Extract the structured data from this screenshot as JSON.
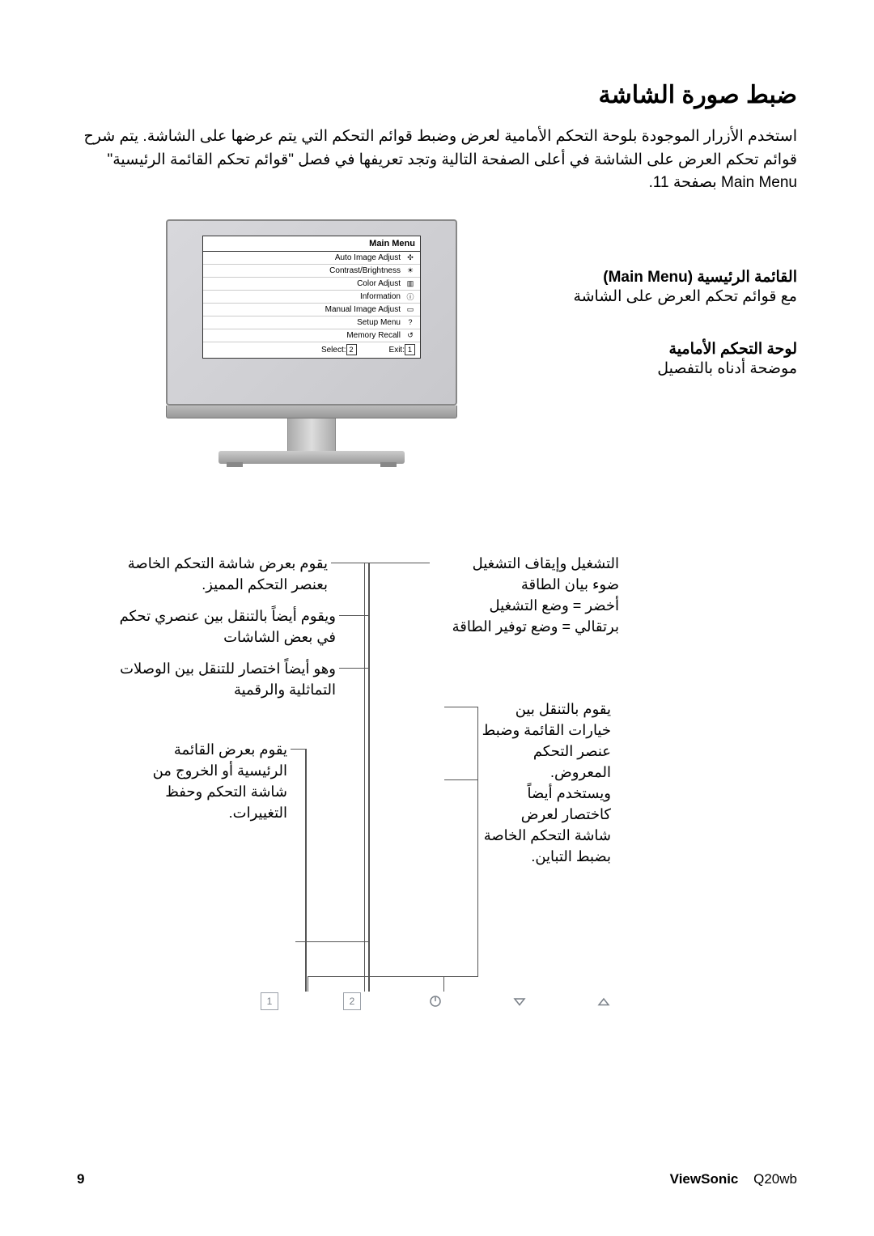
{
  "title": "ضبط صورة الشاشة",
  "intro": "استخدم الأزرار الموجودة بلوحة التحكم الأمامية لعرض وضبط قوائم التحكم التي يتم عرضها على الشاشة. يتم شرح قوائم تحكم العرض على الشاشة في أعلى الصفحة التالية وتجد تعريفها في فصل \"قوائم تحكم القائمة الرئيسية\" Main Menu بصفحة 11.",
  "osd": {
    "title": "Main Menu",
    "items": [
      "Auto Image Adjust",
      "Contrast/Brightness",
      "Color Adjust",
      "Information",
      "Manual Image Adjust",
      "Setup Menu",
      "Memory Recall"
    ],
    "exit_btn": "1",
    "exit_label": ":Exit",
    "select_btn": "2",
    "select_label": ":Select"
  },
  "side": {
    "main_menu_title": "القائمة الرئيسية (Main Menu)",
    "main_menu_sub": "مع قوائم تحكم العرض على الشاشة",
    "panel_title": "لوحة التحكم الأمامية",
    "panel_sub": "موضحة أدناه بالتفصيل"
  },
  "callouts": {
    "power": "التشغيل وإيقاف التشغيل\nضوء بيان الطاقة\nأخضر = وضع التشغيل\nبرتقالي = وضع توفير الطاقة",
    "up": "يقوم بعرض شاشة التحكم الخاصة بعنصر التحكم المميز.\nويقوم أيضاً بالتنقل بين عنصري تحكم في بعض الشاشات\nوهو أيضاً اختصار للتنقل بين الوصلات التماثلية والرقمية",
    "up_l1": "يقوم بعرض شاشة التحكم الخاصة بعنصر التحكم المميز.",
    "up_l2": "ويقوم أيضاً بالتنقل بين عنصري تحكم في بعض الشاشات",
    "up_l3": "وهو أيضاً اختصار للتنقل بين الوصلات التماثلية والرقمية",
    "down": "يقوم بالتنقل بين خيارات القائمة وضبط عنصر التحكم المعروض.\nويستخدم أيضاً كاختصار لعرض شاشة التحكم الخاصة بضبط التباين.",
    "btn1": "يقوم بعرض القائمة الرئيسية أو الخروج من شاشة التحكم وحفظ التغييرات."
  },
  "footer": {
    "page": "9",
    "brand": "ViewSonic",
    "model": "Q20wb"
  },
  "colors": {
    "icon": "#7a8088",
    "line": "#555555"
  }
}
